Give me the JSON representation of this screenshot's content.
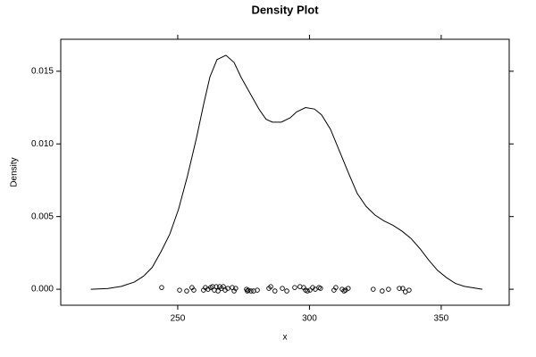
{
  "chart_data": {
    "type": "density",
    "title": "Density Plot",
    "x_label": "x",
    "y_label": "Density",
    "color": "#000000",
    "xlim": [
      205.6,
      375.8
    ],
    "ylim": [
      -0.0011,
      0.0172
    ],
    "xticks": [
      250,
      300,
      350
    ],
    "yticks": [
      {
        "value": 0,
        "label": "0.000"
      },
      {
        "value": 0.005,
        "label": "0.005"
      },
      {
        "value": 0.01,
        "label": "0.010"
      },
      {
        "value": 0.015,
        "label": "0.015"
      }
    ],
    "density": {
      "x": [
        217,
        223.5,
        228.6,
        233.6,
        237,
        240.3,
        243.7,
        247,
        250.3,
        253.7,
        257.1,
        259.8,
        262.2,
        264.9,
        268.3,
        271.4,
        274,
        277.4,
        280.8,
        283.5,
        285.9,
        289.3,
        292.7,
        295.1,
        298.5,
        301.9,
        304.6,
        308,
        311.4,
        314.8,
        318.1,
        321.5,
        324.9,
        328.3,
        331.7,
        335.1,
        338.5,
        341.9,
        345.3,
        348.6,
        352,
        355.4,
        358.8,
        365.6
      ],
      "values": [
        0,
        5e-05,
        0.0002,
        0.0005,
        0.0009,
        0.0015,
        0.0026,
        0.0038,
        0.0055,
        0.0078,
        0.0104,
        0.0127,
        0.0146,
        0.0158,
        0.0161,
        0.0156,
        0.0146,
        0.0135,
        0.0124,
        0.0117,
        0.0115,
        0.0115,
        0.0118,
        0.0122,
        0.0125,
        0.0124,
        0.012,
        0.011,
        0.0095,
        0.008,
        0.0066,
        0.0057,
        0.0051,
        0.0047,
        0.0044,
        0.004,
        0.0035,
        0.0028,
        0.002,
        0.0013,
        0.0008,
        0.0004,
        0.0002,
        0
      ]
    },
    "points": {
      "x": [
        243.9,
        250.7,
        253.4,
        255.4,
        256.1,
        259.8,
        260.5,
        261.5,
        262.5,
        263.2,
        263.9,
        264.6,
        265.3,
        265.9,
        266.6,
        267.3,
        268.0,
        269.0,
        270.7,
        271.4,
        272.0,
        276.1,
        276.4,
        276.8,
        277.8,
        278.8,
        280.2,
        284.6,
        285.3,
        286.9,
        289.7,
        291.4,
        294.4,
        296.4,
        297.8,
        298.5,
        299.2,
        300.2,
        301.2,
        302.2,
        303.6,
        304.2,
        309.3,
        310.0,
        312.4,
        313.1,
        313.7,
        314.7,
        324.2,
        327.6,
        330.0,
        334.1,
        335.4,
        336.4,
        337.8
      ],
      "values": [
        0.00012,
        -6e-05,
        -0.00012,
        0.00012,
        -6e-05,
        -6e-05,
        0.00012,
        0,
        0.00012,
        0.00018,
        -6e-05,
        0.00018,
        -0.00012,
        0.00018,
        6e-05,
        0.00018,
        -6e-05,
        6e-05,
        0.00012,
        -0.00012,
        6e-05,
        0,
        -0.00012,
        -6e-05,
        -0.00012,
        -0.00012,
        -6e-05,
        6e-05,
        0.00018,
        -0.00012,
        6e-05,
        -0.00012,
        0.00012,
        0.00018,
        0.00012,
        -6e-05,
        -0.00012,
        -6e-05,
        0.00012,
        0,
        0.00012,
        6e-05,
        -6e-05,
        0.00012,
        0,
        -0.00012,
        -6e-05,
        6e-05,
        0,
        -0.00012,
        0,
        6e-05,
        6e-05,
        -0.00018,
        -6e-05
      ]
    }
  }
}
